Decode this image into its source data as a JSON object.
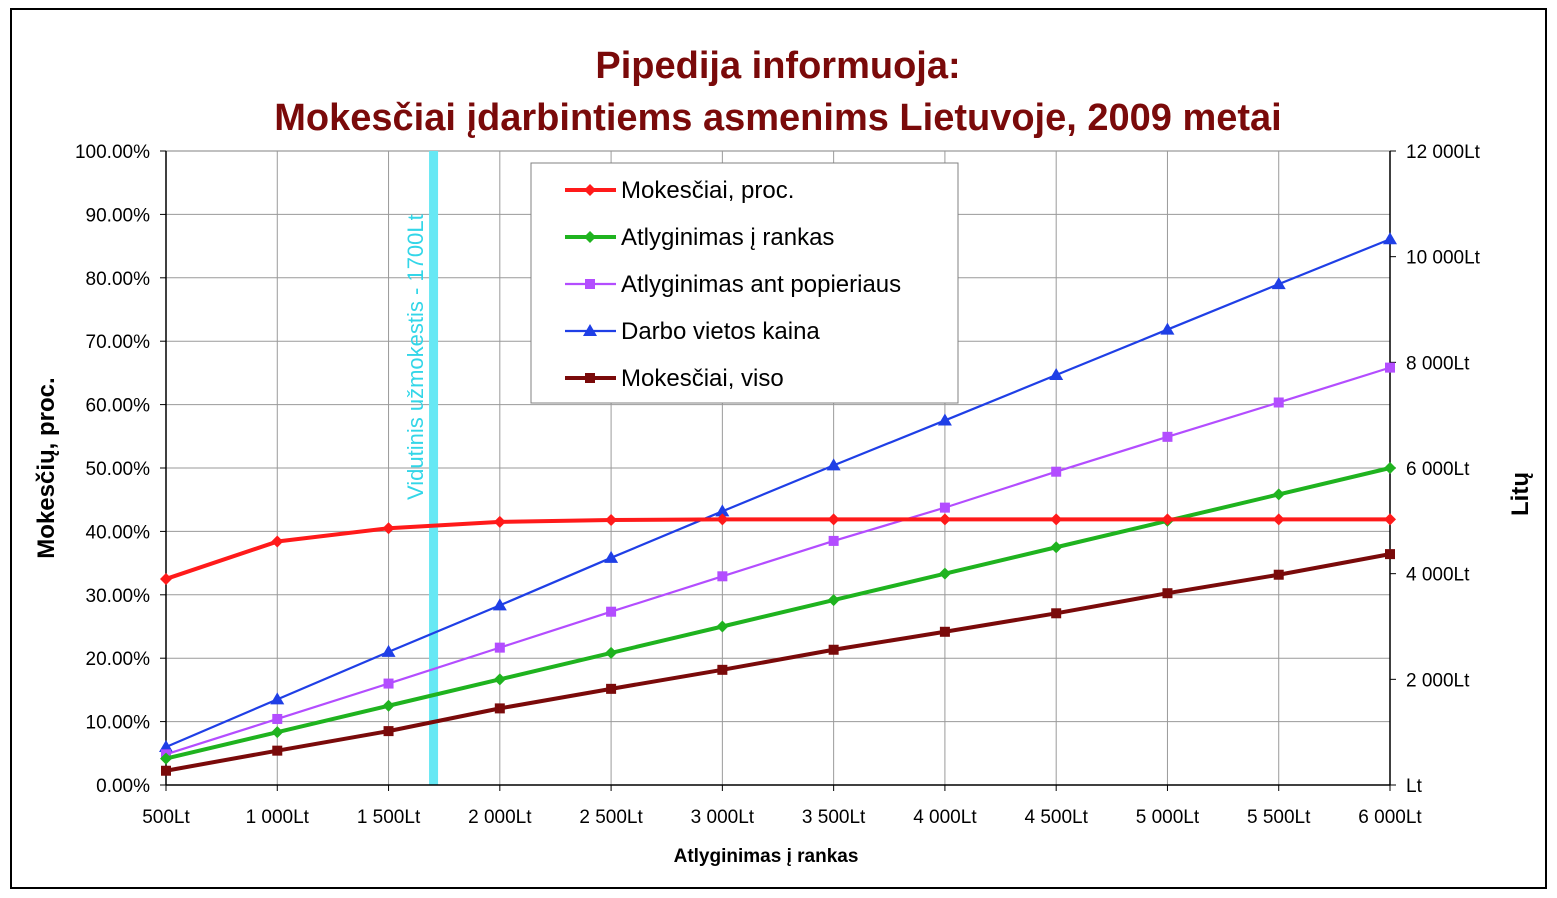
{
  "chart_data": {
    "type": "line",
    "title_line1": "Pipedija informuoja:",
    "title_line2": "Mokesčiai įdarbintiems asmenims Lietuvoje, 2009 metai",
    "xlabel": "Atlyginimas į rankas",
    "ylabel_left": "Mokesčių, proc.",
    "ylabel_right": "Litų",
    "x": [
      500,
      1000,
      1500,
      2000,
      2500,
      3000,
      3500,
      4000,
      4500,
      5000,
      5500,
      6000
    ],
    "x_tick_labels": [
      "500Lt",
      "1 000Lt",
      "1 500Lt",
      "2 000Lt",
      "2 500Lt",
      "3 000Lt",
      "3 500Lt",
      "4 000Lt",
      "4 500Lt",
      "5 000Lt",
      "5 500Lt",
      "6 000Lt"
    ],
    "y_left_range": [
      0,
      1
    ],
    "y_left_tick_labels": [
      "0.00%",
      "10.00%",
      "20.00%",
      "30.00%",
      "40.00%",
      "50.00%",
      "60.00%",
      "70.00%",
      "80.00%",
      "90.00%",
      "100.00%"
    ],
    "y_right_range": [
      0,
      12000
    ],
    "y_right_tick_values": [
      0,
      2000,
      4000,
      6000,
      8000,
      10000,
      12000
    ],
    "y_right_tick_labels": [
      "Lt",
      "2 000Lt",
      "4 000Lt",
      "6 000Lt",
      "8 000Lt",
      "10 000Lt",
      "12 000Lt"
    ],
    "grid": true,
    "legend_position": "top-center",
    "annotation": {
      "text": "Vidutinis užmokestis - 1700Lt",
      "x_value": 1700,
      "color": "#66e8f4"
    },
    "series": [
      {
        "name": "Mokesčiai, proc.",
        "axis": "left",
        "color": "#ff1a1a",
        "marker": "diamond",
        "values": [
          0.325,
          0.384,
          0.405,
          0.415,
          0.418,
          0.419,
          0.419,
          0.419,
          0.419,
          0.419,
          0.419,
          0.419
        ]
      },
      {
        "name": "Atlyginimas į rankas",
        "axis": "right",
        "color": "#1fb31f",
        "marker": "diamond",
        "values": [
          500,
          1000,
          1500,
          2000,
          2500,
          3000,
          3500,
          4000,
          4500,
          5000,
          5500,
          6000
        ]
      },
      {
        "name": "Atlyginimas ant popieriaus",
        "axis": "right",
        "color": "#b34dff",
        "marker": "square",
        "values": [
          580,
          1250,
          1920,
          2600,
          3280,
          3950,
          4620,
          5250,
          5930,
          6590,
          7240,
          7900
        ]
      },
      {
        "name": "Darbo vietos kaina",
        "axis": "right",
        "color": "#1f3fe6",
        "marker": "triangle",
        "values": [
          720,
          1620,
          2520,
          3400,
          4300,
          5180,
          6050,
          6900,
          7760,
          8620,
          9480,
          10330
        ]
      },
      {
        "name": "Mokesčiai, viso",
        "axis": "right",
        "color": "#7a0a0a",
        "marker": "square",
        "values": [
          270,
          650,
          1020,
          1450,
          1820,
          2180,
          2560,
          2900,
          3250,
          3630,
          3980,
          4370
        ]
      }
    ]
  }
}
